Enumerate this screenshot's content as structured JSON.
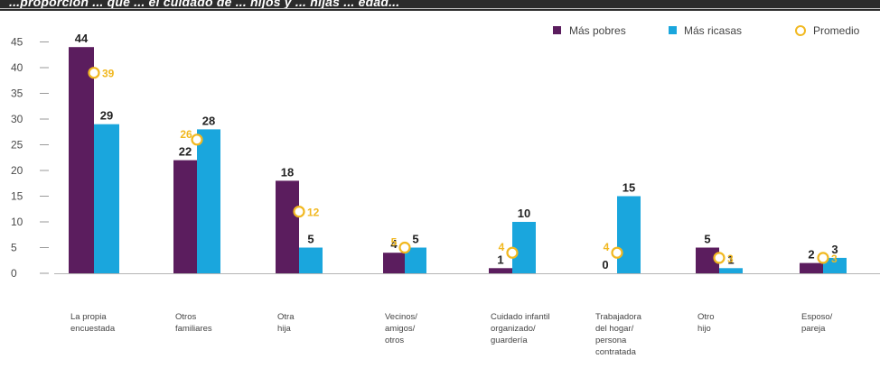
{
  "header_fragment": "...proporción ... que ... el cuidado de ... hijos y ... hijas ... edad...",
  "chart_data": {
    "type": "bar",
    "ylim": [
      0,
      45
    ],
    "yticks": [
      0,
      5,
      10,
      15,
      20,
      25,
      30,
      35,
      40,
      45
    ],
    "categories": [
      [
        "La propia",
        "encuestada"
      ],
      [
        "Otros",
        "familiares"
      ],
      [
        "Otra",
        "hija"
      ],
      [
        "Vecinos/",
        "amigos/",
        "otros"
      ],
      [
        "Cuidado infantil",
        "organizado/",
        "guardería"
      ],
      [
        "Trabajadora",
        "del hogar/",
        "persona",
        "contratada"
      ],
      [
        "Otro",
        "hijo"
      ],
      [
        "Esposo/",
        "pareja"
      ]
    ],
    "series": [
      {
        "name": "Más pobres",
        "color": "#5b1d5e",
        "values": [
          44,
          22,
          18,
          4,
          1,
          0,
          5,
          2
        ]
      },
      {
        "name": "Más ricasas",
        "color": "#1aa6dd",
        "values": [
          29,
          28,
          5,
          5,
          10,
          15,
          1,
          3
        ]
      }
    ],
    "average": {
      "name": "Promedio",
      "color": "#f1b820",
      "values": [
        39,
        26,
        12,
        5,
        4,
        4,
        3,
        3
      ]
    },
    "legend_position": "top-right",
    "grid": false
  }
}
